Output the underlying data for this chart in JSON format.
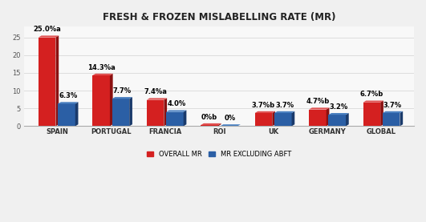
{
  "title": "FRESH & FROZEN MISLABELLING RATE (MR)",
  "categories": [
    "SPAIN",
    "PORTUGAL",
    "FRANCIA",
    "ROI",
    "UK",
    "GERMANY",
    "GLOBAL"
  ],
  "overall_mr": [
    25.0,
    14.3,
    7.4,
    0.3,
    3.7,
    4.7,
    6.7
  ],
  "mr_excl_abft": [
    6.3,
    7.7,
    4.0,
    0.0,
    3.7,
    3.2,
    3.7
  ],
  "overall_labels": [
    "25.0%a",
    "14.3%a",
    "7.4%a",
    "0%b",
    "3.7%b",
    "4.7%b",
    "6.7%b"
  ],
  "excl_labels": [
    "6.3%",
    "7.7%",
    "4.0%",
    "0%",
    "3.7%",
    "3.2%",
    "3.7%"
  ],
  "overall_color": "#D42020",
  "overall_dark": "#8B1010",
  "overall_top": "#E05050",
  "excl_color": "#2B5FA5",
  "excl_dark": "#1A3A6B",
  "excl_top": "#4A80C0",
  "bar_width": 0.32,
  "depth": 0.08,
  "ylim": [
    0,
    28
  ],
  "yticks": [
    0,
    5,
    10,
    15,
    20,
    25
  ],
  "legend_overall": "OVERALL MR",
  "legend_excl": "MR EXCLUDING ABFT",
  "background_color": "#F0F0F0",
  "plot_bg": "#F8F8F8",
  "grid_color": "#DDDDDD",
  "title_fontsize": 8.5,
  "label_fontsize": 6,
  "tick_fontsize": 6,
  "legend_fontsize": 6
}
